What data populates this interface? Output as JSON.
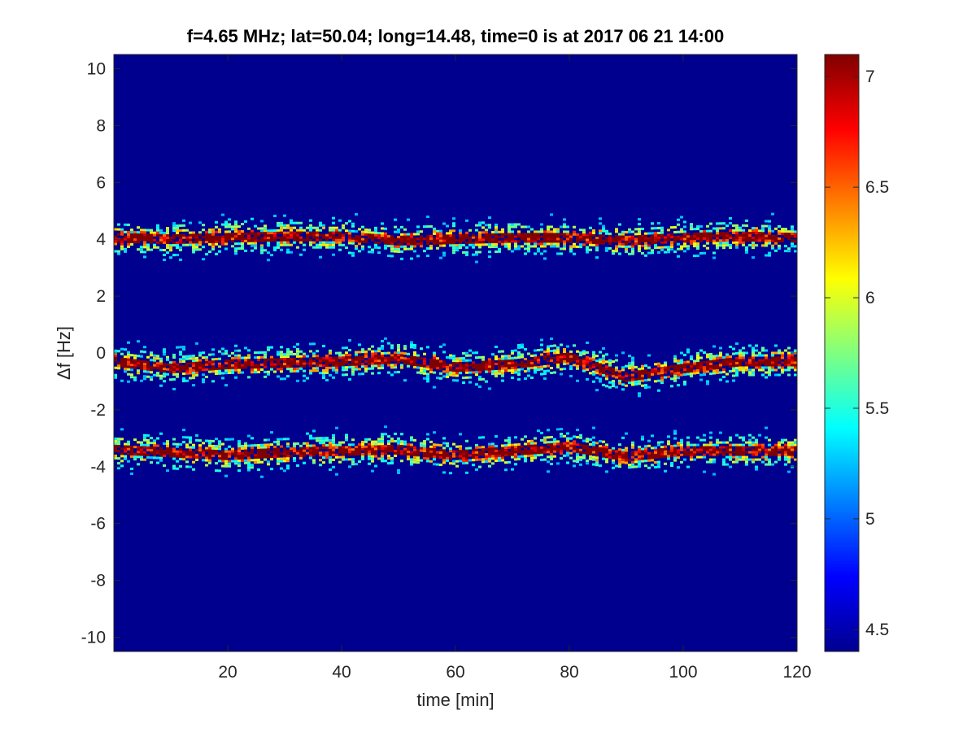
{
  "chart_data": {
    "type": "heatmap",
    "title": "f=4.65 MHz;  lat=50.04; long=14.48, time=0 is at 2017 06 21 14:00",
    "xlabel": "time [min]",
    "ylabel": "Δf [Hz]",
    "xlim": [
      0,
      120
    ],
    "ylim": [
      -10.5,
      10.5
    ],
    "x_ticks": [
      20,
      40,
      60,
      80,
      100,
      120
    ],
    "y_ticks": [
      10,
      8,
      6,
      4,
      2,
      0,
      -2,
      -4,
      -6,
      -8,
      -10
    ],
    "colorbar": {
      "colormap": "jet",
      "clim": [
        4.4,
        7.1
      ],
      "ticks": [
        7,
        6.5,
        6,
        5.5,
        5,
        4.5
      ]
    },
    "background_color": "#00008f",
    "traces": [
      {
        "time": [
          0,
          10,
          20,
          30,
          40,
          50,
          60,
          70,
          80,
          90,
          100,
          110,
          120
        ],
        "df": [
          4.05,
          4.0,
          4.05,
          4.1,
          4.1,
          3.95,
          4.0,
          4.05,
          4.05,
          3.95,
          4.05,
          4.1,
          4.05
        ]
      },
      {
        "time": [
          0,
          10,
          20,
          30,
          40,
          50,
          60,
          70,
          80,
          90,
          100,
          110,
          120
        ],
        "df": [
          -0.3,
          -0.55,
          -0.4,
          -0.35,
          -0.3,
          -0.2,
          -0.5,
          -0.4,
          -0.15,
          -0.85,
          -0.55,
          -0.3,
          -0.3
        ]
      },
      {
        "time": [
          0,
          10,
          20,
          30,
          40,
          50,
          60,
          70,
          80,
          90,
          100,
          110,
          120
        ],
        "df": [
          -3.4,
          -3.5,
          -3.6,
          -3.5,
          -3.45,
          -3.4,
          -3.6,
          -3.45,
          -3.3,
          -3.65,
          -3.45,
          -3.45,
          -3.45
        ]
      }
    ]
  }
}
